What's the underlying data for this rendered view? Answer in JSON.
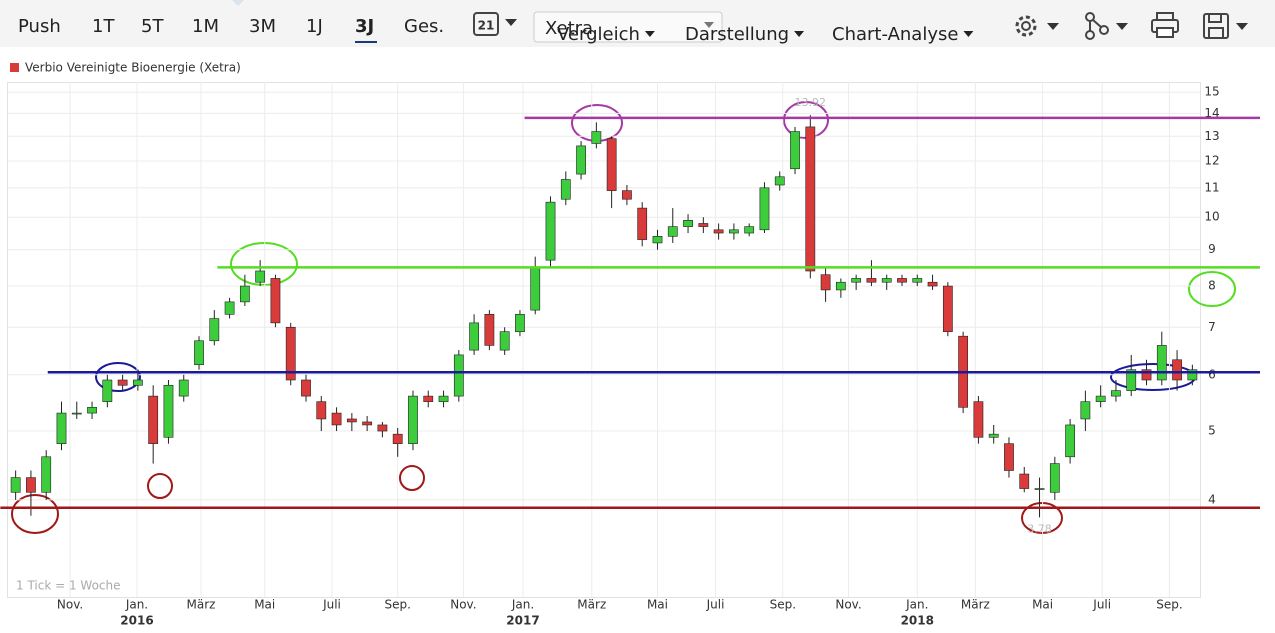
{
  "toolbar": {
    "ranges": [
      "Push",
      "1T",
      "5T",
      "1M",
      "3M",
      "1J",
      "3J",
      "Ges."
    ],
    "active_range": 6,
    "calendar_day": "21",
    "exchange": "Xetra",
    "menus": [
      "Vergleich",
      "Darstellung",
      "Chart-Analyse"
    ]
  },
  "chart_data": {
    "type": "candlestick",
    "log_scale": true,
    "grid": true,
    "series": [
      {
        "name": "Verbio Vereinigte Bioenergie (Xetra)",
        "color": "#d93a3a",
        "up_color": "#3ccc3c",
        "down_color": "#d93a3a",
        "open": [
          4.1,
          4.3,
          4.1,
          4.8,
          5.3,
          5.3,
          5.5,
          5.9,
          5.8,
          5.6,
          4.9,
          5.6,
          6.2,
          6.7,
          7.3,
          7.6,
          8.1,
          8.2,
          7.0,
          5.9,
          5.5,
          5.3,
          5.2,
          5.15,
          5.1,
          4.95,
          4.8,
          5.6,
          5.5,
          5.6,
          6.5,
          7.3,
          6.5,
          6.9,
          7.4,
          8.7,
          10.6,
          11.5,
          12.7,
          12.9,
          10.9,
          10.3,
          9.2,
          9.4,
          9.7,
          9.8,
          9.6,
          9.5,
          9.5,
          9.6,
          11.1,
          11.7,
          13.4,
          8.3,
          7.9,
          8.1,
          8.2,
          8.1,
          8.2,
          8.1,
          8.1,
          8.0,
          6.8,
          5.5,
          4.9,
          4.8,
          4.35,
          4.15,
          4.1,
          4.6,
          5.2,
          5.5,
          5.6,
          5.7,
          6.1,
          5.9,
          6.3,
          5.9
        ],
        "high": [
          4.4,
          4.4,
          4.7,
          5.5,
          5.5,
          5.5,
          6.0,
          6.0,
          6.1,
          5.8,
          5.9,
          6.0,
          6.8,
          7.4,
          7.7,
          8.3,
          8.7,
          8.3,
          7.1,
          6.0,
          5.6,
          5.4,
          5.3,
          5.25,
          5.15,
          5.05,
          5.7,
          5.7,
          5.7,
          6.5,
          7.3,
          7.4,
          7.0,
          7.4,
          8.8,
          10.7,
          11.6,
          12.8,
          13.6,
          13.0,
          11.1,
          10.5,
          9.6,
          10.3,
          10.1,
          10.0,
          9.8,
          9.8,
          9.8,
          11.2,
          11.6,
          13.4,
          13.92,
          8.5,
          8.2,
          8.3,
          8.7,
          8.3,
          8.3,
          8.3,
          8.3,
          8.1,
          6.9,
          5.6,
          5.1,
          4.9,
          4.45,
          4.3,
          4.6,
          5.2,
          5.7,
          5.8,
          5.9,
          6.4,
          6.3,
          6.9,
          6.5,
          6.2
        ],
        "low": [
          4.0,
          3.8,
          4.0,
          4.7,
          5.2,
          5.2,
          5.4,
          5.7,
          5.7,
          4.5,
          4.8,
          5.5,
          6.1,
          6.6,
          7.2,
          7.5,
          8.0,
          7.0,
          5.8,
          5.5,
          5.0,
          5.0,
          5.0,
          5.0,
          4.9,
          4.6,
          4.7,
          5.4,
          5.4,
          5.5,
          6.4,
          6.5,
          6.4,
          6.8,
          7.3,
          8.5,
          10.4,
          11.3,
          12.5,
          10.3,
          10.4,
          9.1,
          9.0,
          9.2,
          9.5,
          9.5,
          9.3,
          9.3,
          9.4,
          9.5,
          10.9,
          11.5,
          8.2,
          7.6,
          7.7,
          7.9,
          8.0,
          7.9,
          8.0,
          8.0,
          7.9,
          6.8,
          5.3,
          4.8,
          4.8,
          4.3,
          4.1,
          3.78,
          4.0,
          4.5,
          5.0,
          5.4,
          5.5,
          5.6,
          5.8,
          5.8,
          5.7,
          5.8
        ],
        "close": [
          4.3,
          4.1,
          4.6,
          5.3,
          5.3,
          5.4,
          5.9,
          5.8,
          5.9,
          4.8,
          5.8,
          5.9,
          6.7,
          7.2,
          7.6,
          8.0,
          8.4,
          7.1,
          5.9,
          5.6,
          5.2,
          5.1,
          5.15,
          5.1,
          5.0,
          4.8,
          5.6,
          5.5,
          5.6,
          6.4,
          7.1,
          6.6,
          6.9,
          7.3,
          8.5,
          10.5,
          11.3,
          12.6,
          13.2,
          10.9,
          10.6,
          9.3,
          9.4,
          9.7,
          9.9,
          9.7,
          9.5,
          9.6,
          9.7,
          11.0,
          11.4,
          13.2,
          8.4,
          7.9,
          8.1,
          8.2,
          8.1,
          8.2,
          8.1,
          8.2,
          8.0,
          6.9,
          5.4,
          4.9,
          4.95,
          4.4,
          4.15,
          4.15,
          4.5,
          5.1,
          5.5,
          5.6,
          5.7,
          6.1,
          5.9,
          6.6,
          5.9,
          6.1
        ]
      }
    ],
    "xlim": [
      -0.5,
      77.5
    ],
    "xticks": [
      {
        "value": 3.56,
        "label": "Nov."
      },
      {
        "value": 7.94,
        "label": "Jan.",
        "year": "2016"
      },
      {
        "value": 12.13,
        "label": "März"
      },
      {
        "value": 16.3,
        "label": "Mai"
      },
      {
        "value": 20.7,
        "label": "Juli"
      },
      {
        "value": 25.0,
        "label": "Sep."
      },
      {
        "value": 29.3,
        "label": "Nov."
      },
      {
        "value": 33.2,
        "label": "Jan.",
        "year": "2017"
      },
      {
        "value": 37.7,
        "label": "März"
      },
      {
        "value": 42.0,
        "label": "Mai"
      },
      {
        "value": 45.8,
        "label": "Juli"
      },
      {
        "value": 50.2,
        "label": "Sep."
      },
      {
        "value": 54.5,
        "label": "Nov."
      },
      {
        "value": 59.0,
        "label": "Jan.",
        "year": "2018"
      },
      {
        "value": 62.8,
        "label": "März"
      },
      {
        "value": 67.2,
        "label": "Mai"
      },
      {
        "value": 71.1,
        "label": "Juli"
      },
      {
        "value": 75.5,
        "label": "Sep."
      }
    ],
    "ylim": [
      2.92,
      15.5
    ],
    "yticks": [
      4,
      5,
      6,
      7,
      8,
      9,
      10,
      11,
      12,
      13,
      14,
      15
    ],
    "max_label": 13.92,
    "min_label": 3.78,
    "levels": [
      {
        "value": 13.8,
        "from": 33.3,
        "color": "#a43aa4"
      },
      {
        "value": 8.5,
        "from": 13.2,
        "color": "#55dd22"
      },
      {
        "value": 6.05,
        "from": 2.1,
        "color": "#1a1a9a"
      },
      {
        "value": 3.9,
        "from": -1.0,
        "color": "#a01818"
      }
    ],
    "footnote": "1 Tick = 1 Woche"
  }
}
